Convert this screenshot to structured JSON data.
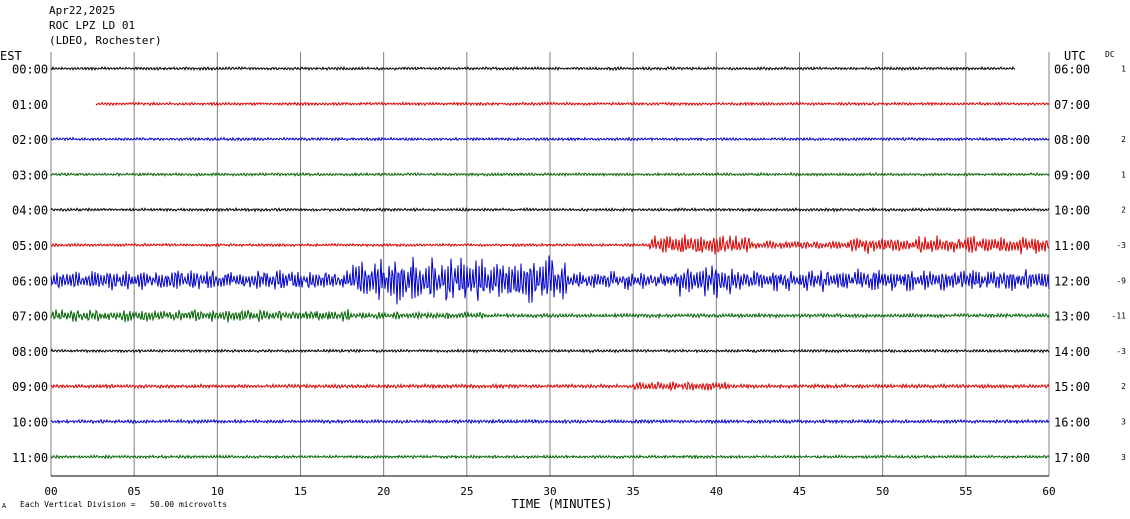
{
  "header": {
    "date": "Apr22,2025",
    "station": "ROC LPZ LD 01",
    "network": "(LDEO, Rochester)"
  },
  "left_zone": "EST",
  "right_zone": "UTC",
  "dc_header": "DC",
  "footer": {
    "mark": "A",
    "note": "Each Vertical Division =   50.00 microvolts"
  },
  "colors": {
    "black": "#000000",
    "red": "#dd0000",
    "blue": "#0000cc",
    "green": "#006400",
    "grid": "#808080"
  },
  "chart_data": {
    "type": "line",
    "title": "ROC LPZ LD 01",
    "xlabel": "TIME (MINUTES)",
    "xlim": [
      0,
      60
    ],
    "x_ticks": [
      "00",
      "05",
      "10",
      "15",
      "20",
      "25",
      "30",
      "35",
      "40",
      "45",
      "50",
      "55",
      "60"
    ],
    "rows": [
      {
        "est": "00:00",
        "utc": "06:00",
        "dc": "1",
        "color": "#000000",
        "start_min": 0,
        "end_min": 58,
        "amp": 1.5,
        "events": []
      },
      {
        "est": "01:00",
        "utc": "07:00",
        "dc": "",
        "color": "#dd0000",
        "start_min": 2.7,
        "end_min": 60,
        "amp": 1.5,
        "events": []
      },
      {
        "est": "02:00",
        "utc": "08:00",
        "dc": "2",
        "color": "#0000cc",
        "start_min": 0,
        "end_min": 60,
        "amp": 1.5,
        "events": []
      },
      {
        "est": "03:00",
        "utc": "09:00",
        "dc": "1",
        "color": "#006400",
        "start_min": 0,
        "end_min": 60,
        "amp": 1.5,
        "events": []
      },
      {
        "est": "04:00",
        "utc": "10:00",
        "dc": "2",
        "color": "#000000",
        "start_min": 0,
        "end_min": 60,
        "amp": 1.5,
        "events": []
      },
      {
        "est": "05:00",
        "utc": "11:00",
        "dc": "-3",
        "color": "#dd0000",
        "start_min": 0,
        "end_min": 60,
        "amp": 1.5,
        "events": [
          {
            "from": 36,
            "to": 42,
            "amp": 13
          },
          {
            "from": 42,
            "to": 48,
            "amp": 5
          },
          {
            "from": 48,
            "to": 60,
            "amp": 10
          }
        ]
      },
      {
        "est": "06:00",
        "utc": "12:00",
        "dc": "-9",
        "color": "#0000cc",
        "start_min": 0,
        "end_min": 60,
        "amp": 5,
        "events": [
          {
            "from": 0,
            "to": 18,
            "amp": 11
          },
          {
            "from": 18,
            "to": 31,
            "amp": 26
          },
          {
            "from": 31,
            "to": 37.5,
            "amp": 10
          },
          {
            "from": 37.5,
            "to": 41,
            "amp": 20
          },
          {
            "from": 41,
            "to": 60,
            "amp": 12
          }
        ]
      },
      {
        "est": "07:00",
        "utc": "13:00",
        "dc": "-11",
        "color": "#006400",
        "start_min": 0,
        "end_min": 60,
        "amp": 2,
        "events": [
          {
            "from": 0,
            "to": 18,
            "amp": 7
          },
          {
            "from": 18,
            "to": 26,
            "amp": 4
          }
        ]
      },
      {
        "est": "08:00",
        "utc": "14:00",
        "dc": "-3",
        "color": "#000000",
        "start_min": 0,
        "end_min": 60,
        "amp": 1.5,
        "events": []
      },
      {
        "est": "09:00",
        "utc": "15:00",
        "dc": "2",
        "color": "#dd0000",
        "start_min": 0,
        "end_min": 60,
        "amp": 2,
        "events": [
          {
            "from": 35,
            "to": 41,
            "amp": 5
          }
        ]
      },
      {
        "est": "10:00",
        "utc": "16:00",
        "dc": "3",
        "color": "#0000cc",
        "start_min": 0,
        "end_min": 60,
        "amp": 1.8,
        "events": []
      },
      {
        "est": "11:00",
        "utc": "17:00",
        "dc": "3",
        "color": "#006400",
        "start_min": 0,
        "end_min": 60,
        "amp": 1.5,
        "events": []
      }
    ]
  }
}
